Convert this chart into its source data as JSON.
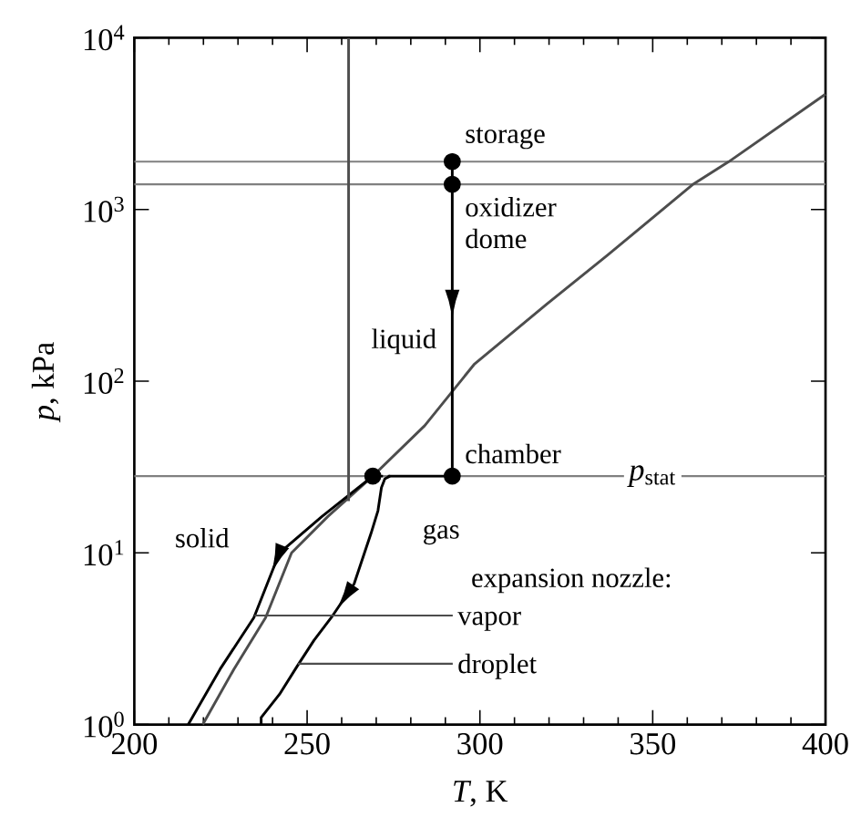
{
  "chart_data": {
    "type": "line",
    "xlabel": "*T*,  K",
    "ylabel": "*p*,  kPa",
    "log": "y",
    "xlim": [
      200,
      400
    ],
    "ylim": [
      1,
      10000
    ],
    "xticks": [
      200,
      250,
      300,
      350,
      400
    ],
    "yticks": [
      {
        "value": 1,
        "label": "10$^{0}$"
      },
      {
        "value": 10,
        "label": "10$^{1}$"
      },
      {
        "value": 100,
        "label": "10$^{2}$"
      },
      {
        "value": 1000,
        "label": "10$^{3}$"
      },
      {
        "value": 10000,
        "label": "10$^{4}$"
      }
    ],
    "series": [
      {
        "color": "#4d4d4d",
        "x": [
          219.8,
          228.8,
          238,
          245.5,
          256,
          269,
          284,
          298.3,
          319.3,
          336.9,
          361.5,
          372,
          400
        ],
        "values": [
          1,
          2.1,
          4.2,
          10,
          16.3,
          28,
          55,
          125,
          281,
          541,
          1393,
          1897,
          4690
        ]
      },
      {
        "color": "#000000",
        "x": [
          269,
          254.3,
          242,
          234.6,
          224.8,
          215.6
        ],
        "values": [
          28,
          16.3,
          10,
          4.2,
          2.1,
          1
        ]
      },
      {
        "color": "#000000",
        "x": [
          292,
          274,
          272.5,
          271.5,
          270.5,
          268.5,
          266.6,
          263.6,
          257,
          252,
          247.2,
          242,
          236.7,
          236.7
        ],
        "values": [
          28,
          28,
          27,
          24,
          17.6,
          13,
          10,
          6.6,
          4.2,
          3.1,
          2.2,
          1.5,
          1.1,
          1
        ]
      },
      {
        "color": "#000000",
        "line_style": "dotted",
        "x": [
          269,
          274
        ],
        "values": [
          28,
          28
        ]
      },
      {
        "color": "#000000",
        "x": [
          292,
          292,
          292
        ],
        "values": [
          1900,
          290,
          28
        ]
      },
      {
        "color": "#4d4d4d",
        "x": [
          262,
          262
        ],
        "values": [
          10000,
          20
        ]
      },
      {
        "type": "scatter",
        "marker": "circle",
        "color": "#000000",
        "x": [
          292,
          292,
          292,
          269
        ],
        "values": [
          1900,
          1400,
          28,
          28
        ]
      }
    ],
    "ref_lines": [
      {
        "axis": "y",
        "value": 1900,
        "color": "#808080"
      },
      {
        "axis": "y",
        "value": 1400,
        "color": "#808080"
      },
      {
        "axis": "y",
        "value": 28,
        "color": "#808080",
        "label": "*p*$_{stat}$"
      }
    ],
    "annotations": [
      {
        "text": "storage",
        "x": 292,
        "y": 1900
      },
      {
        "text": "oxidizer dome",
        "x": 292,
        "y": 1400
      },
      {
        "text": "chamber",
        "x": 292,
        "y": 28
      },
      "liquid",
      "solid",
      "gas",
      "expansion nozzle:",
      {
        "text": "vapor",
        "x": 234.6,
        "y": 4.2
      },
      {
        "text": "droplet",
        "x": 247.2,
        "y": 2.2
      }
    ]
  }
}
